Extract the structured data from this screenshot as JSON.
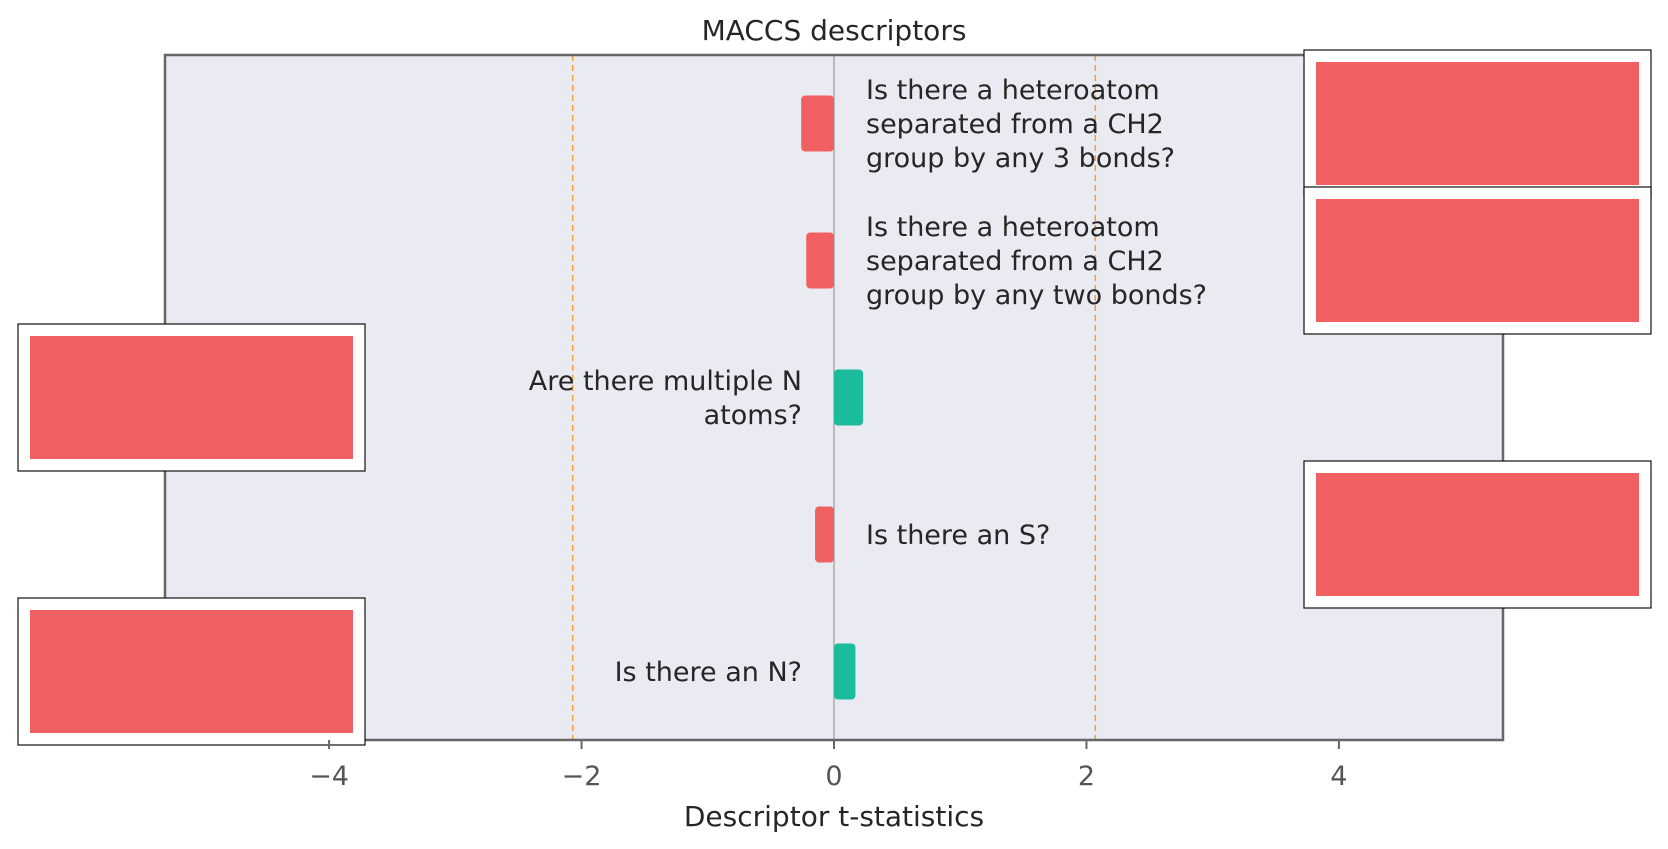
{
  "chart_data": {
    "type": "bar",
    "orientation": "horizontal",
    "title": "MACCS descriptors",
    "xlabel": "Descriptor t-statistics",
    "ylabel": "",
    "xlim": [
      -5.3,
      5.3
    ],
    "xticks": [
      -4,
      -2,
      0,
      2,
      4
    ],
    "xtick_labels": [
      "−4",
      "−2",
      "0",
      "2",
      "4"
    ],
    "significance_lines": [
      -2.07,
      2.07
    ],
    "grid": false,
    "bars": [
      {
        "label": "Is there a heteroatom separated from a CH2 group by any 3 bonds?",
        "value": -0.26,
        "color": "#f06060",
        "label_side": "right"
      },
      {
        "label": "Is there a heteroatom separated from a CH2 group by any two bonds?",
        "value": -0.22,
        "color": "#f06060",
        "label_side": "right"
      },
      {
        "label": "Are there multiple N atoms?",
        "value": 0.23,
        "color": "#1abc9c",
        "label_side": "left"
      },
      {
        "label": "Is there an S?",
        "value": -0.15,
        "color": "#f06060",
        "label_side": "right"
      },
      {
        "label": "Is there an N?",
        "value": 0.17,
        "color": "#1abc9c",
        "label_side": "left"
      }
    ],
    "structure_images": [
      {
        "bar": 0,
        "side": "right"
      },
      {
        "bar": 1,
        "side": "right"
      },
      {
        "bar": 2,
        "side": "left"
      },
      {
        "bar": 3,
        "side": "right"
      },
      {
        "bar": 4,
        "side": "left"
      }
    ],
    "colors": {
      "negative": "#f06060",
      "positive": "#1abc9c",
      "plot_background": "#eaeaf2",
      "significance_line": "#f5a033",
      "axis_frame": "#666666",
      "zero_line": "#999999",
      "structure_image_fill": "#f06060"
    }
  }
}
